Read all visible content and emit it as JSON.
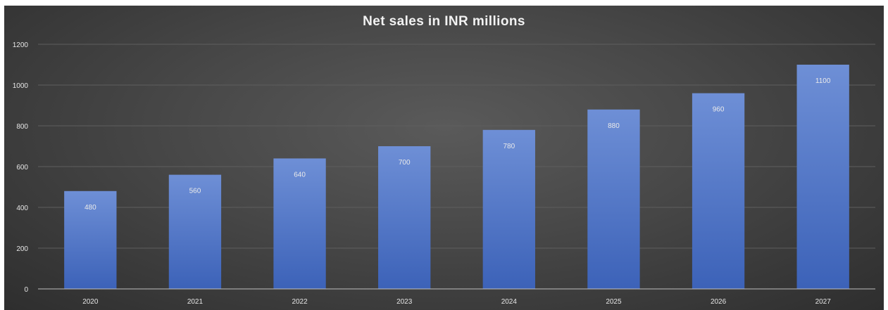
{
  "chart_data": {
    "type": "bar",
    "title": "Net sales in INR millions",
    "xlabel": "",
    "ylabel": "",
    "categories": [
      "2020",
      "2021",
      "2022",
      "2023",
      "2024",
      "2025",
      "2026",
      "2027"
    ],
    "values": [
      480,
      560,
      640,
      700,
      780,
      880,
      960,
      1100
    ],
    "data_labels": [
      "480",
      "560",
      "640",
      "700",
      "780",
      "880",
      "960",
      "1100"
    ],
    "ylim": [
      0,
      1200
    ],
    "yticks": [
      "0",
      "200",
      "400",
      "600",
      "800",
      "1000",
      "1200"
    ],
    "grid": true,
    "legend": "none",
    "colors": {
      "bar_top": "#6e8fd6",
      "bar_bottom": "#3c62b8",
      "background": "#474747",
      "gridline": "#5e5e5e",
      "axis": "#bfbfbf"
    }
  }
}
